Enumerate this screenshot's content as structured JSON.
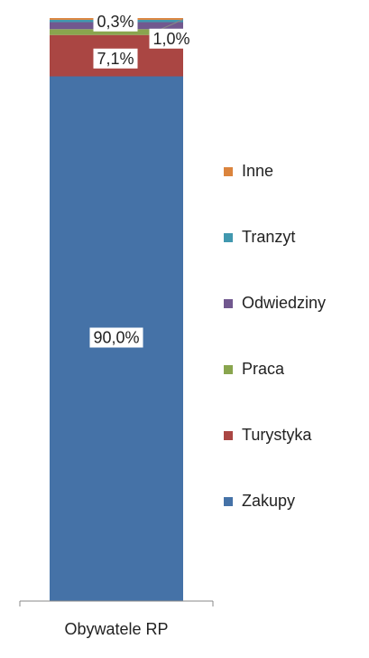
{
  "chart_data": {
    "type": "stacked_bar",
    "categories": [
      "Obywatele RP"
    ],
    "ylim": [
      0,
      100
    ],
    "series": [
      {
        "name": "Zakupy",
        "color": "#4572a7",
        "values": [
          90.0
        ],
        "value_labels": [
          "90,0%"
        ]
      },
      {
        "name": "Turystyka",
        "color": "#aa4643",
        "values": [
          7.1
        ],
        "value_labels": [
          "7,1%"
        ]
      },
      {
        "name": "Praca",
        "color": "#89a54e",
        "values": [
          1.0
        ],
        "value_labels": [
          "1,0%"
        ]
      },
      {
        "name": "Odwiedziny",
        "color": "#71588f",
        "values": [
          1.2
        ]
      },
      {
        "name": "Tranzyt",
        "color": "#4198af",
        "values": [
          0.4
        ]
      },
      {
        "name": "Inne",
        "color": "#db843d",
        "values": [
          0.3
        ],
        "value_labels": [
          "0,3%"
        ]
      }
    ],
    "legend": "right"
  }
}
